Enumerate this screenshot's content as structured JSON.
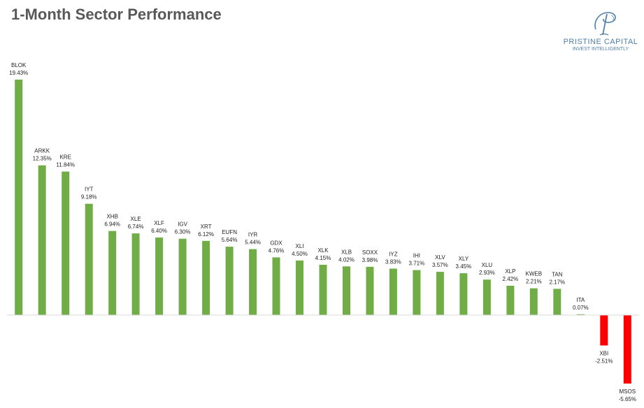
{
  "chart_data": {
    "type": "bar",
    "title": "1-Month Sector Performance",
    "xlabel": "",
    "ylabel": "",
    "value_suffix": "%",
    "ylim": [
      -6,
      20
    ],
    "grid": false,
    "legend": "none",
    "colors": {
      "positive": "#70ad47",
      "negative": "#ff0000"
    },
    "categories": [
      "BLOK",
      "ARKK",
      "KRE",
      "IYT",
      "XHB",
      "XLE",
      "XLF",
      "IGV",
      "XRT",
      "EUFN",
      "IYR",
      "GDX",
      "XLI",
      "XLK",
      "XLB",
      "SOXX",
      "IYZ",
      "IHI",
      "XLV",
      "XLY",
      "XLU",
      "XLP",
      "KWEB",
      "TAN",
      "ITA",
      "XBI",
      "MSOS"
    ],
    "values": [
      19.43,
      12.35,
      11.84,
      9.18,
      6.94,
      6.74,
      6.4,
      6.3,
      6.12,
      5.64,
      5.44,
      4.76,
      4.5,
      4.15,
      4.02,
      3.98,
      3.83,
      3.71,
      3.57,
      3.45,
      2.93,
      2.42,
      2.21,
      2.17,
      0.07,
      -2.51,
      -5.65
    ]
  },
  "logo": {
    "name": "PRISTINE CAPITAL",
    "tagline": "INVEST INTELLIGENTLY",
    "color": "#4f7fa8"
  }
}
